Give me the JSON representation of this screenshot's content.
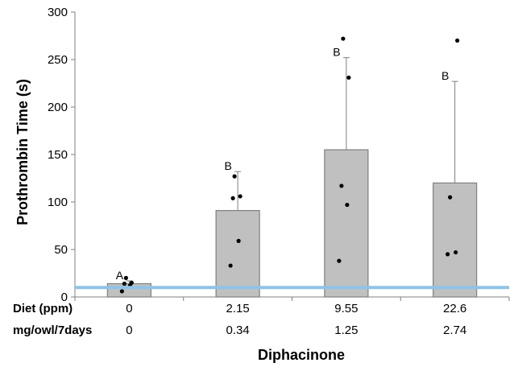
{
  "chart_data": {
    "type": "bar",
    "xlabel": "Diphacinone",
    "ylabel": "Prothrombin Time (s)",
    "ylim": [
      0,
      300
    ],
    "yticks": [
      0,
      50,
      100,
      150,
      200,
      250,
      300
    ],
    "grid": false,
    "categories": [
      "0",
      "2.15",
      "9.55",
      "22.6"
    ],
    "row_labels": [
      {
        "label": "Diet (ppm)",
        "values": [
          "0",
          "2.15",
          "9.55",
          "22.6"
        ]
      },
      {
        "label": "mg/owl/7days",
        "values": [
          "0",
          "0.34",
          "1.25",
          "2.74"
        ]
      }
    ],
    "values": [
      14,
      91,
      155,
      120
    ],
    "error_upper": [
      17,
      132,
      252,
      227
    ],
    "significance_letters": [
      "A",
      "B",
      "B",
      "B"
    ],
    "individual_points": [
      [
        6,
        12,
        14,
        15,
        20
      ],
      [
        33,
        59,
        104,
        106,
        127
      ],
      [
        38,
        97,
        117,
        231,
        272
      ],
      [
        45,
        47,
        105,
        270
      ]
    ],
    "reference_line": {
      "y": 10,
      "color": "#8fc3e6"
    },
    "colors": {
      "bar_fill": "#c0c0c0",
      "bar_stroke": "#7f7f7f",
      "error_bar": "#7f7f7f",
      "points": "#000000",
      "axis": "#808080"
    }
  }
}
